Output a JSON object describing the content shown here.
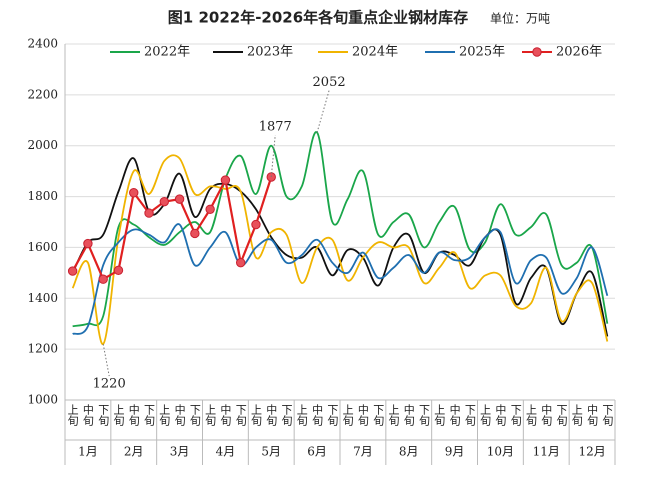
{
  "chart_data": {
    "type": "line",
    "title": "图1 2022年-2026年各旬重点企业钢材库存",
    "unit": "单位：万吨",
    "categories": [
      "上旬",
      "中旬",
      "下旬",
      "上旬",
      "中旬",
      "下旬",
      "上旬",
      "中旬",
      "下旬",
      "上旬",
      "中旬",
      "下旬",
      "上旬",
      "中旬",
      "下旬",
      "上旬",
      "中旬",
      "下旬",
      "上旬",
      "中旬",
      "下旬",
      "上旬",
      "中旬",
      "下旬",
      "上旬",
      "中旬",
      "下旬",
      "上旬",
      "中旬",
      "下旬",
      "上旬",
      "中旬",
      "下旬",
      "上旬",
      "中旬",
      "下旬"
    ],
    "month_groups": [
      "1月",
      "2月",
      "3月",
      "4月",
      "5月",
      "6月",
      "7月",
      "8月",
      "9月",
      "10月",
      "11月",
      "12月"
    ],
    "series": [
      {
        "name": "2022年",
        "color": "#1aa64a",
        "values": [
          1290,
          1300,
          1330,
          1680,
          1690,
          1640,
          1610,
          1660,
          1700,
          1660,
          1870,
          1960,
          1810,
          2000,
          1800,
          1840,
          2052,
          1700,
          1790,
          1900,
          1650,
          1700,
          1730,
          1600,
          1700,
          1760,
          1590,
          1620,
          1770,
          1650,
          1680,
          1730,
          1530,
          1540,
          1600,
          1300
        ]
      },
      {
        "name": "2023年",
        "color": "#111111",
        "values": [
          1500,
          1620,
          1650,
          1820,
          1950,
          1740,
          1770,
          1890,
          1720,
          1830,
          1850,
          1820,
          1750,
          1640,
          1570,
          1560,
          1600,
          1490,
          1590,
          1560,
          1450,
          1600,
          1650,
          1500,
          1580,
          1570,
          1530,
          1640,
          1650,
          1380,
          1480,
          1520,
          1300,
          1420,
          1500,
          1250
        ]
      },
      {
        "name": "2024年",
        "color": "#f0b400",
        "values": [
          1440,
          1540,
          1220,
          1640,
          1900,
          1810,
          1940,
          1950,
          1810,
          1840,
          1830,
          1820,
          1560,
          1660,
          1650,
          1460,
          1600,
          1630,
          1470,
          1560,
          1620,
          1600,
          1600,
          1460,
          1520,
          1580,
          1440,
          1490,
          1490,
          1370,
          1380,
          1520,
          1310,
          1420,
          1460,
          1230
        ]
      },
      {
        "name": "2025年",
        "color": "#1f6fb0",
        "values": [
          1260,
          1290,
          1530,
          1620,
          1670,
          1650,
          1620,
          1690,
          1530,
          1600,
          1660,
          1530,
          1600,
          1630,
          1540,
          1570,
          1630,
          1540,
          1500,
          1580,
          1480,
          1520,
          1570,
          1500,
          1580,
          1550,
          1560,
          1640,
          1660,
          1460,
          1550,
          1560,
          1420,
          1480,
          1600,
          1410
        ]
      },
      {
        "name": "2026年",
        "color": "#e02020",
        "markers": true,
        "values": [
          1507,
          1615,
          1475,
          1510,
          1815,
          1735,
          1780,
          1790,
          1655,
          1750,
          1865,
          1540,
          1690,
          1877,
          null,
          null,
          null,
          null,
          null,
          null,
          null,
          null,
          null,
          null,
          null,
          null,
          null,
          null,
          null,
          null,
          null,
          null,
          null,
          null,
          null,
          null
        ]
      }
    ],
    "ylim": [
      1000,
      2400
    ],
    "yticks": [
      1000,
      1200,
      1400,
      1600,
      1800,
      2000,
      2200,
      2400
    ],
    "grid": true
  }
}
